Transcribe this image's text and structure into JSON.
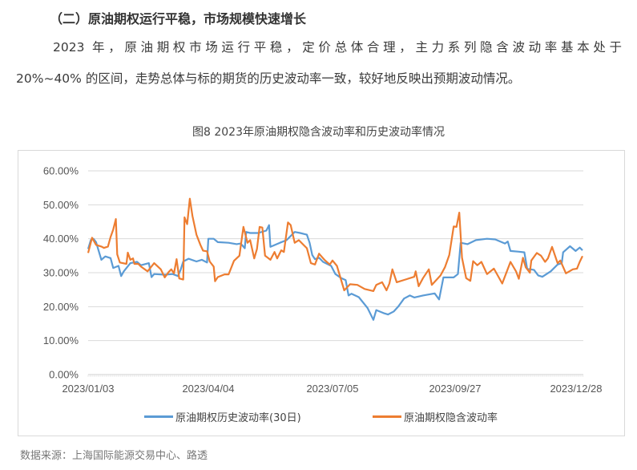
{
  "heading": "（二）原油期权运行平稳，市场规模快速增长",
  "paragraph": {
    "line1": "2023 年，原油期权市场运行平稳，定价总体合理，主力系列隐含波动率基本处于",
    "line2": "20%~40% 的区间，走势总体与标的期货的历史波动率一致，较好地反映出预期波动情况。"
  },
  "figure_title": "图8  2023年原油期权隐含波动率和历史波动率情况",
  "source": "数据来源：上海国际能源交易中心、路透",
  "chart_data": {
    "type": "line",
    "title": "图8  2023年原油期权隐含波动率和历史波动率情况",
    "ylim": [
      0,
      60
    ],
    "yticks": [
      "0.00%",
      "10.00%",
      "20.00%",
      "30.00%",
      "40.00%",
      "50.00%",
      "60.00%"
    ],
    "xticks": [
      "2023/01/03",
      "2023/04/04",
      "2023/07/05",
      "2023/09/27",
      "2023/12/28"
    ],
    "grid": true,
    "legend_position": "bottom",
    "unit": "%",
    "series": [
      {
        "name": "原油期权历史波动率(30日)",
        "color": "#5b9bd5",
        "points": [
          [
            "2023-01-03",
            37.0
          ],
          [
            "2023-01-05",
            39.6
          ],
          [
            "2023-01-07",
            40.0
          ],
          [
            "2023-01-09",
            39.0
          ],
          [
            "2023-01-13",
            33.8
          ],
          [
            "2023-01-16",
            34.8
          ],
          [
            "2023-01-20",
            34.3
          ],
          [
            "2023-01-22",
            31.4
          ],
          [
            "2023-01-26",
            32.0
          ],
          [
            "2023-01-28",
            29.0
          ],
          [
            "2023-01-30",
            30.4
          ],
          [
            "2023-02-04",
            32.8
          ],
          [
            "2023-02-09",
            33.2
          ],
          [
            "2023-02-12",
            32.2
          ],
          [
            "2023-02-18",
            32.8
          ],
          [
            "2023-02-20",
            28.7
          ],
          [
            "2023-02-22",
            29.6
          ],
          [
            "2023-03-02",
            29.4
          ],
          [
            "2023-03-08",
            29.6
          ],
          [
            "2023-03-12",
            29.0
          ],
          [
            "2023-03-14",
            30.8
          ],
          [
            "2023-03-16",
            33.3
          ],
          [
            "2023-03-20",
            34.1
          ],
          [
            "2023-03-26",
            33.3
          ],
          [
            "2023-03-30",
            33.8
          ],
          [
            "2023-04-03",
            33.0
          ],
          [
            "2023-04-04",
            40.0
          ],
          [
            "2023-04-08",
            40.0
          ],
          [
            "2023-04-11",
            39.0
          ],
          [
            "2023-04-19",
            38.8
          ],
          [
            "2023-04-25",
            38.4
          ],
          [
            "2023-04-28",
            38.6
          ],
          [
            "2023-05-01",
            37.2
          ],
          [
            "2023-05-02",
            42.0
          ],
          [
            "2023-05-05",
            41.7
          ],
          [
            "2023-05-11",
            41.7
          ],
          [
            "2023-05-17",
            42.4
          ],
          [
            "2023-05-19",
            44.0
          ],
          [
            "2023-05-20",
            37.6
          ],
          [
            "2023-05-27",
            38.8
          ],
          [
            "2023-06-01",
            39.6
          ],
          [
            "2023-06-07",
            42.0
          ],
          [
            "2023-06-11",
            41.7
          ],
          [
            "2023-06-15",
            41.3
          ],
          [
            "2023-06-16",
            41.2
          ],
          [
            "2023-06-18",
            38.8
          ],
          [
            "2023-06-20",
            35.2
          ],
          [
            "2023-06-22",
            34.0
          ],
          [
            "2023-06-25",
            34.4
          ],
          [
            "2023-06-28",
            33.2
          ],
          [
            "2023-07-04",
            32.0
          ],
          [
            "2023-07-07",
            29.6
          ],
          [
            "2023-07-11",
            28.4
          ],
          [
            "2023-07-14",
            27.8
          ],
          [
            "2023-07-16",
            23.3
          ],
          [
            "2023-07-18",
            23.8
          ],
          [
            "2023-07-23",
            22.8
          ],
          [
            "2023-07-29",
            19.6
          ],
          [
            "2023-08-02",
            16.1
          ],
          [
            "2023-08-04",
            19.0
          ],
          [
            "2023-08-09",
            18.1
          ],
          [
            "2023-08-12",
            17.7
          ],
          [
            "2023-08-16",
            18.6
          ],
          [
            "2023-08-19",
            20.0
          ],
          [
            "2023-08-23",
            22.4
          ],
          [
            "2023-08-27",
            23.3
          ],
          [
            "2023-08-30",
            22.7
          ],
          [
            "2023-09-05",
            23.3
          ],
          [
            "2023-09-13",
            23.9
          ],
          [
            "2023-09-16",
            22.1
          ],
          [
            "2023-09-19",
            28.6
          ],
          [
            "2023-09-26",
            28.6
          ],
          [
            "2023-09-29",
            29.6
          ],
          [
            "2023-10-01",
            38.8
          ],
          [
            "2023-10-06",
            38.4
          ],
          [
            "2023-10-12",
            39.6
          ],
          [
            "2023-10-20",
            40.0
          ],
          [
            "2023-10-26",
            39.8
          ],
          [
            "2023-11-02",
            38.6
          ],
          [
            "2023-11-04",
            39.2
          ],
          [
            "2023-11-06",
            36.4
          ],
          [
            "2023-11-12",
            36.2
          ],
          [
            "2023-11-16",
            36.0
          ],
          [
            "2023-11-18",
            31.2
          ],
          [
            "2023-11-23",
            30.8
          ],
          [
            "2023-11-26",
            29.2
          ],
          [
            "2023-11-29",
            28.8
          ],
          [
            "2023-12-05",
            30.4
          ],
          [
            "2023-12-10",
            32.4
          ],
          [
            "2023-12-13",
            32.8
          ],
          [
            "2023-12-14",
            36.0
          ],
          [
            "2023-12-19",
            37.8
          ],
          [
            "2023-12-23",
            36.4
          ],
          [
            "2023-12-26",
            37.4
          ],
          [
            "2023-12-28",
            36.6
          ]
        ]
      },
      {
        "name": "原油期权隐含波动率",
        "color": "#ed7d31",
        "points": [
          [
            "2023-01-03",
            35.8
          ],
          [
            "2023-01-06",
            40.3
          ],
          [
            "2023-01-09",
            38.2
          ],
          [
            "2023-01-13",
            37.7
          ],
          [
            "2023-01-15",
            37.3
          ],
          [
            "2023-01-18",
            37.7
          ],
          [
            "2023-01-20",
            40.5
          ],
          [
            "2023-01-22",
            42.7
          ],
          [
            "2023-01-24",
            45.8
          ],
          [
            "2023-01-25",
            35.4
          ],
          [
            "2023-01-27",
            33.0
          ],
          [
            "2023-02-01",
            32.6
          ],
          [
            "2023-02-02",
            35.9
          ],
          [
            "2023-02-04",
            33.8
          ],
          [
            "2023-02-06",
            34.2
          ],
          [
            "2023-02-07",
            32.6
          ],
          [
            "2023-02-10",
            32.6
          ],
          [
            "2023-02-12",
            31.8
          ],
          [
            "2023-02-17",
            30.4
          ],
          [
            "2023-02-22",
            32.8
          ],
          [
            "2023-02-27",
            31.0
          ],
          [
            "2023-03-02",
            28.6
          ],
          [
            "2023-03-05",
            30.2
          ],
          [
            "2023-03-07",
            31.0
          ],
          [
            "2023-03-09",
            29.8
          ],
          [
            "2023-03-11",
            34.0
          ],
          [
            "2023-03-13",
            28.3
          ],
          [
            "2023-03-16",
            28.0
          ],
          [
            "2023-03-17",
            46.3
          ],
          [
            "2023-03-19",
            44.3
          ],
          [
            "2023-03-21",
            51.8
          ],
          [
            "2023-03-23",
            46.7
          ],
          [
            "2023-03-26",
            41.2
          ],
          [
            "2023-03-29",
            38.2
          ],
          [
            "2023-03-31",
            36.5
          ],
          [
            "2023-04-03",
            36.3
          ],
          [
            "2023-04-05",
            33.3
          ],
          [
            "2023-04-08",
            31.8
          ],
          [
            "2023-04-09",
            27.5
          ],
          [
            "2023-04-11",
            28.7
          ],
          [
            "2023-04-16",
            29.5
          ],
          [
            "2023-04-19",
            29.5
          ],
          [
            "2023-04-23",
            33.5
          ],
          [
            "2023-04-27",
            35.0
          ],
          [
            "2023-04-30",
            43.5
          ],
          [
            "2023-05-03",
            38.8
          ],
          [
            "2023-05-05",
            39.6
          ],
          [
            "2023-05-08",
            34.2
          ],
          [
            "2023-05-10",
            37.0
          ],
          [
            "2023-05-12",
            43.5
          ],
          [
            "2023-05-14",
            43.3
          ],
          [
            "2023-05-16",
            35.0
          ],
          [
            "2023-05-20",
            33.8
          ],
          [
            "2023-05-23",
            36.1
          ],
          [
            "2023-05-25",
            34.2
          ],
          [
            "2023-05-28",
            36.6
          ],
          [
            "2023-05-30",
            36.1
          ],
          [
            "2023-06-02",
            44.8
          ],
          [
            "2023-06-04",
            44.0
          ],
          [
            "2023-06-07",
            38.8
          ],
          [
            "2023-06-10",
            39.6
          ],
          [
            "2023-06-14",
            38.0
          ],
          [
            "2023-06-16",
            37.2
          ],
          [
            "2023-06-19",
            32.8
          ],
          [
            "2023-06-22",
            32.4
          ],
          [
            "2023-06-25",
            35.6
          ],
          [
            "2023-06-29",
            33.8
          ],
          [
            "2023-07-03",
            32.4
          ],
          [
            "2023-07-05",
            33.6
          ],
          [
            "2023-07-08",
            32.0
          ],
          [
            "2023-07-13",
            24.8
          ],
          [
            "2023-07-17",
            26.6
          ],
          [
            "2023-07-22",
            26.4
          ],
          [
            "2023-07-27",
            25.2
          ],
          [
            "2023-08-02",
            24.6
          ],
          [
            "2023-08-04",
            26.4
          ],
          [
            "2023-08-08",
            27.2
          ],
          [
            "2023-08-11",
            24.8
          ],
          [
            "2023-08-13",
            26.8
          ],
          [
            "2023-08-15",
            31.0
          ],
          [
            "2023-08-18",
            27.2
          ],
          [
            "2023-08-24",
            28.0
          ],
          [
            "2023-08-30",
            28.8
          ],
          [
            "2023-08-31",
            30.4
          ],
          [
            "2023-09-02",
            26.0
          ],
          [
            "2023-09-05",
            28.4
          ],
          [
            "2023-09-09",
            31.0
          ],
          [
            "2023-09-11",
            26.4
          ],
          [
            "2023-09-17",
            29.2
          ],
          [
            "2023-09-20",
            31.6
          ],
          [
            "2023-09-23",
            35.2
          ],
          [
            "2023-09-26",
            43.6
          ],
          [
            "2023-09-28",
            43.5
          ],
          [
            "2023-09-30",
            47.7
          ],
          [
            "2023-10-02",
            34.4
          ],
          [
            "2023-10-05",
            28.4
          ],
          [
            "2023-10-08",
            27.6
          ],
          [
            "2023-10-10",
            33.4
          ],
          [
            "2023-10-13",
            32.2
          ],
          [
            "2023-10-16",
            33.2
          ],
          [
            "2023-10-20",
            29.6
          ],
          [
            "2023-10-25",
            31.2
          ],
          [
            "2023-10-31",
            26.8
          ],
          [
            "2023-11-06",
            33.2
          ],
          [
            "2023-11-10",
            30.4
          ],
          [
            "2023-11-12",
            28.2
          ],
          [
            "2023-11-15",
            34.4
          ],
          [
            "2023-11-17",
            31.6
          ],
          [
            "2023-11-20",
            30.0
          ],
          [
            "2023-11-21",
            33.6
          ],
          [
            "2023-11-25",
            35.8
          ],
          [
            "2023-11-28",
            35.0
          ],
          [
            "2023-12-01",
            33.2
          ],
          [
            "2023-12-03",
            34.2
          ],
          [
            "2023-12-06",
            37.6
          ],
          [
            "2023-12-10",
            32.8
          ],
          [
            "2023-12-12",
            33.6
          ],
          [
            "2023-12-16",
            29.8
          ],
          [
            "2023-12-21",
            31.0
          ],
          [
            "2023-12-24",
            31.2
          ],
          [
            "2023-12-26",
            33.2
          ],
          [
            "2023-12-28",
            34.9
          ]
        ]
      }
    ]
  }
}
